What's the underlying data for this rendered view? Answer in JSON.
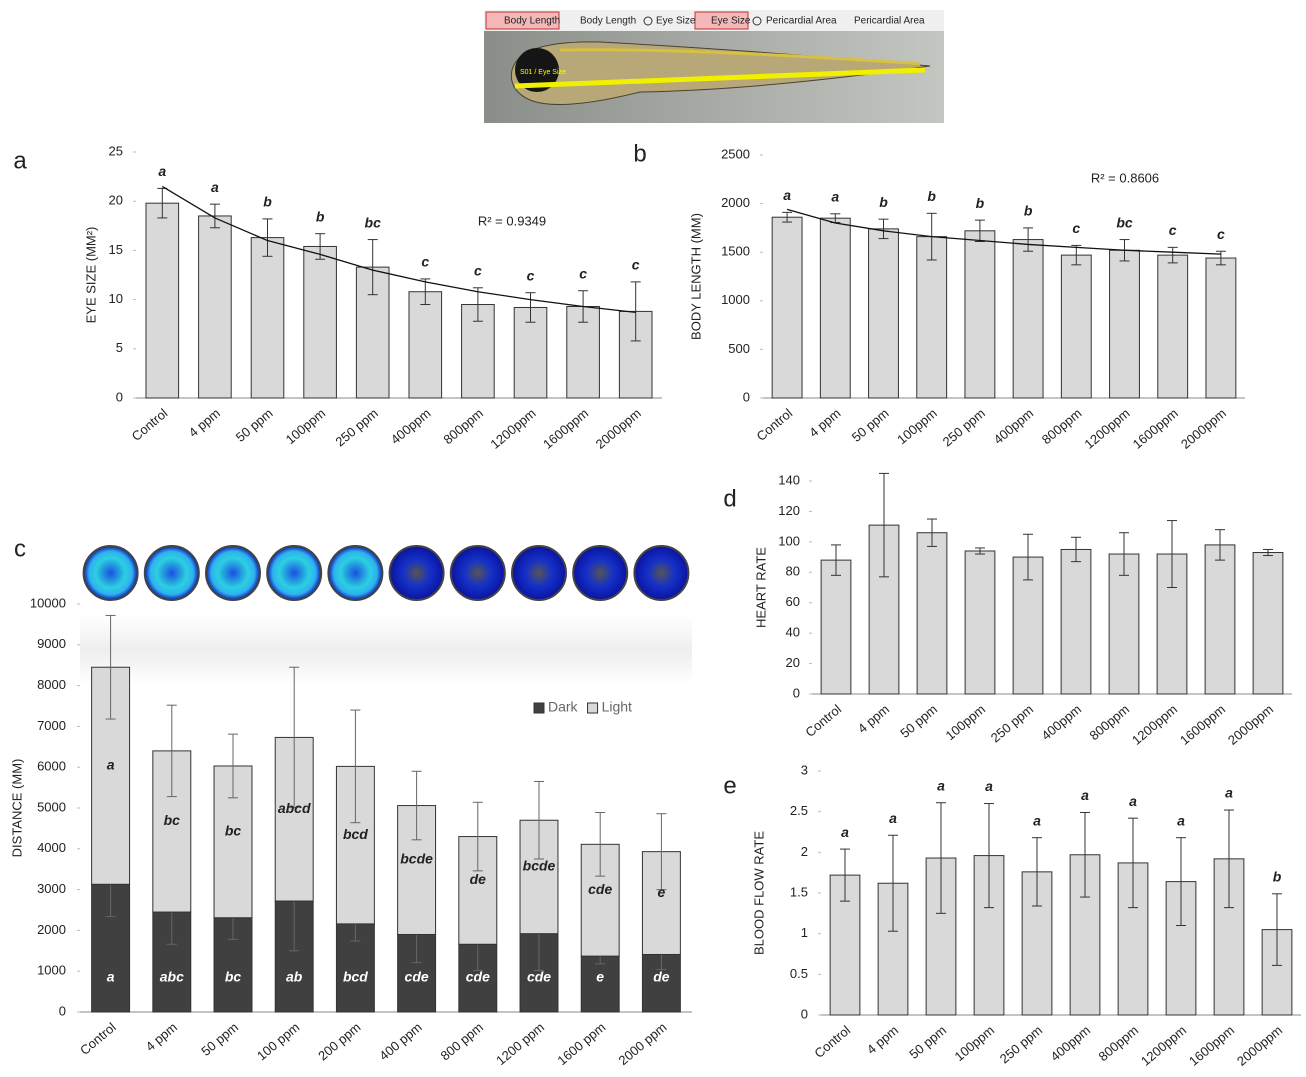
{
  "header_image": {
    "tools": [
      "Body Length",
      "Body Length",
      "Eye Size",
      "Eye Size",
      "Pericardial Area",
      "Pericardial Area"
    ],
    "overlay_label": "S01 / Eye Size"
  },
  "chart_data": [
    {
      "type": "bar",
      "panel_label": "a",
      "ylabel": "EYE SIZE (MM²)",
      "categories": [
        "Control",
        "4 ppm",
        "50 ppm",
        "100ppm",
        "250 ppm",
        "400ppm",
        "800ppm",
        "1200ppm",
        "1600ppm",
        "2000ppm"
      ],
      "values": [
        19.8,
        18.5,
        16.3,
        15.4,
        13.3,
        10.8,
        9.5,
        9.2,
        9.3,
        8.8
      ],
      "errors": [
        1.5,
        1.2,
        1.9,
        1.3,
        2.8,
        1.3,
        1.7,
        1.5,
        1.6,
        3.0
      ],
      "significance_letters": [
        "a",
        "a",
        "b",
        "b",
        "bc",
        "c",
        "c",
        "c",
        "c",
        "c"
      ],
      "trend": {
        "values": [
          21.5,
          18.3,
          16.0,
          14.6,
          13.0,
          11.8,
          10.8,
          10.0,
          9.3,
          8.7
        ]
      },
      "annotation": "R² = 0.9349",
      "color": "#d9d9d9",
      "ylim": [
        0,
        25
      ],
      "yticks": [
        0,
        5,
        10,
        15,
        20,
        25
      ]
    },
    {
      "type": "bar",
      "panel_label": "b",
      "ylabel": "BODY LENGTH (MM)",
      "categories": [
        "Control",
        "4 ppm",
        "50 ppm",
        "100ppm",
        "250 ppm",
        "400ppm",
        "800ppm",
        "1200ppm",
        "1600ppm",
        "2000ppm"
      ],
      "values": [
        1860,
        1850,
        1740,
        1660,
        1720,
        1630,
        1470,
        1520,
        1470,
        1440
      ],
      "errors": [
        50,
        45,
        100,
        240,
        110,
        120,
        100,
        110,
        80,
        70
      ],
      "significance_letters": [
        "a",
        "a",
        "b",
        "b",
        "b",
        "b",
        "c",
        "bc",
        "c",
        "c"
      ],
      "trend": {
        "values": [
          1940,
          1800,
          1720,
          1660,
          1620,
          1580,
          1550,
          1520,
          1500,
          1480
        ]
      },
      "annotation": "R² = 0.8606",
      "color": "#d9d9d9",
      "ylim": [
        0,
        2500
      ],
      "yticks": [
        0,
        500,
        1000,
        1500,
        2000,
        2500
      ]
    },
    {
      "type": "stacked_bar",
      "panel_label": "c",
      "ylabel": "DISTANCE (MM)",
      "categories": [
        "Control",
        "4 ppm",
        "50 ppm",
        "100 ppm",
        "200 ppm",
        "400 ppm",
        "800 ppm",
        "1200 ppm",
        "1600 ppm",
        "2000 ppm"
      ],
      "series": [
        {
          "name": "Dark",
          "color": "#404040",
          "values": [
            3130,
            2450,
            2310,
            2720,
            2160,
            1900,
            1660,
            1920,
            1370,
            1410
          ],
          "errors": [
            790,
            790,
            530,
            1220,
            420,
            690,
            640,
            900,
            190,
            370
          ],
          "letters": [
            "a",
            "abc",
            "bc",
            "ab",
            "bcd",
            "cde",
            "cde",
            "cde",
            "e",
            "de"
          ]
        },
        {
          "name": "Light",
          "color": "#d9d9d9",
          "values": [
            5320,
            3950,
            3720,
            4010,
            3860,
            3160,
            2640,
            2780,
            2740,
            2520
          ],
          "errors": [
            1270,
            1120,
            780,
            1720,
            1380,
            840,
            840,
            950,
            780,
            930
          ],
          "letters": [
            "a",
            "bc",
            "bc",
            "abcd",
            "bcd",
            "bcde",
            "de",
            "bcde",
            "cde",
            "e"
          ]
        }
      ],
      "ylim": [
        0,
        10000
      ],
      "yticks": [
        0,
        1000,
        2000,
        3000,
        4000,
        5000,
        6000,
        7000,
        8000,
        9000,
        10000
      ]
    },
    {
      "type": "bar",
      "panel_label": "d",
      "ylabel": "HEART RATE",
      "categories": [
        "Control",
        "4 ppm",
        "50 ppm",
        "100ppm",
        "250 ppm",
        "400ppm",
        "800ppm",
        "1200ppm",
        "1600ppm",
        "2000ppm"
      ],
      "values": [
        88,
        111,
        106,
        94,
        90,
        95,
        92,
        92,
        98,
        93
      ],
      "errors": [
        10,
        34,
        9,
        2,
        15,
        8,
        14,
        22,
        10,
        2
      ],
      "color": "#d9d9d9",
      "ylim": [
        0,
        140
      ],
      "yticks": [
        0,
        20,
        40,
        60,
        80,
        100,
        120,
        140
      ]
    },
    {
      "type": "bar",
      "panel_label": "e",
      "ylabel": "BLOOD FLOW RATE",
      "categories": [
        "Control",
        "4 ppm",
        "50 ppm",
        "100ppm",
        "250 ppm",
        "400ppm",
        "800ppm",
        "1200ppm",
        "1600ppm",
        "2000ppm"
      ],
      "values": [
        1.72,
        1.62,
        1.93,
        1.96,
        1.76,
        1.97,
        1.87,
        1.64,
        1.92,
        1.05
      ],
      "errors": [
        0.32,
        0.59,
        0.68,
        0.64,
        0.42,
        0.52,
        0.55,
        0.54,
        0.6,
        0.44
      ],
      "significance_letters": [
        "a",
        "a",
        "a",
        "a",
        "a",
        "a",
        "a",
        "a",
        "a",
        "b"
      ],
      "color": "#d9d9d9",
      "ylim": [
        0,
        3
      ],
      "yticks": [
        0,
        0.5,
        1,
        1.5,
        2,
        2.5,
        3
      ]
    }
  ]
}
